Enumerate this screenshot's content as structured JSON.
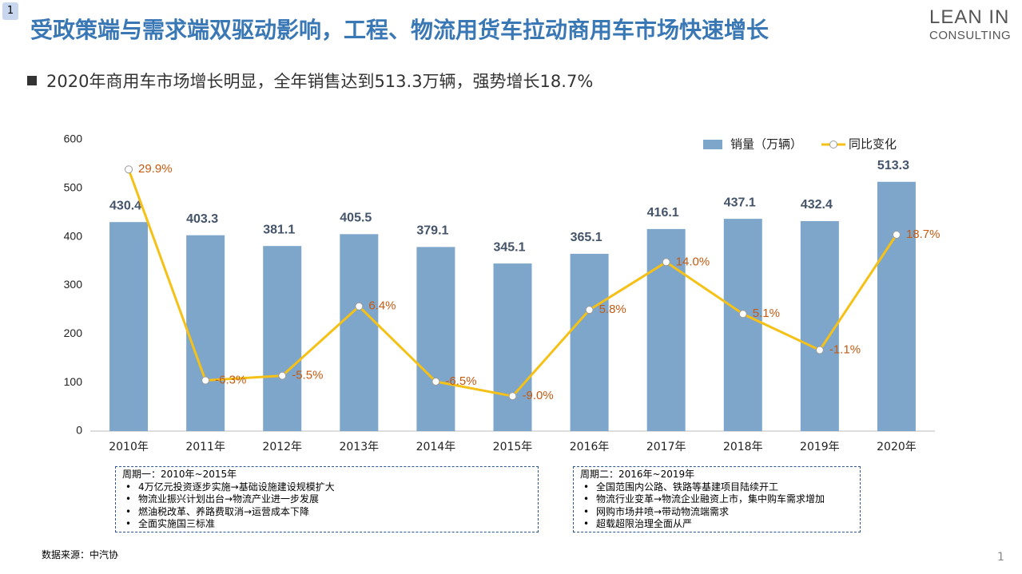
{
  "badge": "1",
  "title": "受政策端与需求端双驱动影响，工程、物流用货车拉动商用车市场快速增长",
  "logo": {
    "line1": "LEAN IN",
    "line2": "CONSULTING"
  },
  "subtitle": "2020年商用车市场增长明显，全年销售达到513.3万辆，强势增长18.7%",
  "chart_data": {
    "type": "bar",
    "categories": [
      "2010年",
      "2011年",
      "2012年",
      "2013年",
      "2014年",
      "2015年",
      "2016年",
      "2017年",
      "2018年",
      "2019年",
      "2020年"
    ],
    "series": [
      {
        "name": "销量（万辆）",
        "type": "bar",
        "color": "#7ea6cb",
        "values": [
          430.4,
          403.3,
          381.1,
          405.5,
          379.1,
          345.1,
          365.1,
          416.1,
          437.1,
          432.4,
          513.3
        ]
      },
      {
        "name": "同比变化",
        "type": "line",
        "axis": "y2",
        "color": "#f5c116",
        "values": [
          29.9,
          -6.3,
          -5.5,
          6.4,
          -6.5,
          -9.0,
          5.8,
          14.0,
          5.1,
          -1.1,
          18.7
        ],
        "value_labels": [
          "29.9%",
          "-6.3%",
          "-5.5%",
          "6.4%",
          "-6.5%",
          "-9.0%",
          "5.8%",
          "14.0%",
          "5.1%",
          "-1.1%",
          "18.7%"
        ]
      }
    ],
    "ylim": [
      0,
      600
    ],
    "yticks": [
      0,
      100,
      200,
      300,
      400,
      500,
      600
    ],
    "y2lim": [
      -15,
      35
    ],
    "legend": "upper right"
  },
  "notes": [
    {
      "title": "周期一：2010年~2015年",
      "items": [
        "4万亿元投资逐步实施→基础设施建设规模扩大",
        "物流业振兴计划出台→物流产业进一步发展",
        "燃油税改革、养路费取消→运营成本下降",
        "全面实施国三标准"
      ]
    },
    {
      "title": "周期二：2016年~2019年",
      "items": [
        "全国范围内公路、铁路等基建项目陆续开工",
        "物流行业变革→物流企业融资上市，集中购车需求增加",
        "网购市场井喷→带动物流端需求",
        "超载超限治理全面从严"
      ]
    }
  ],
  "source": "数据来源：中汽协",
  "page_number": "1"
}
